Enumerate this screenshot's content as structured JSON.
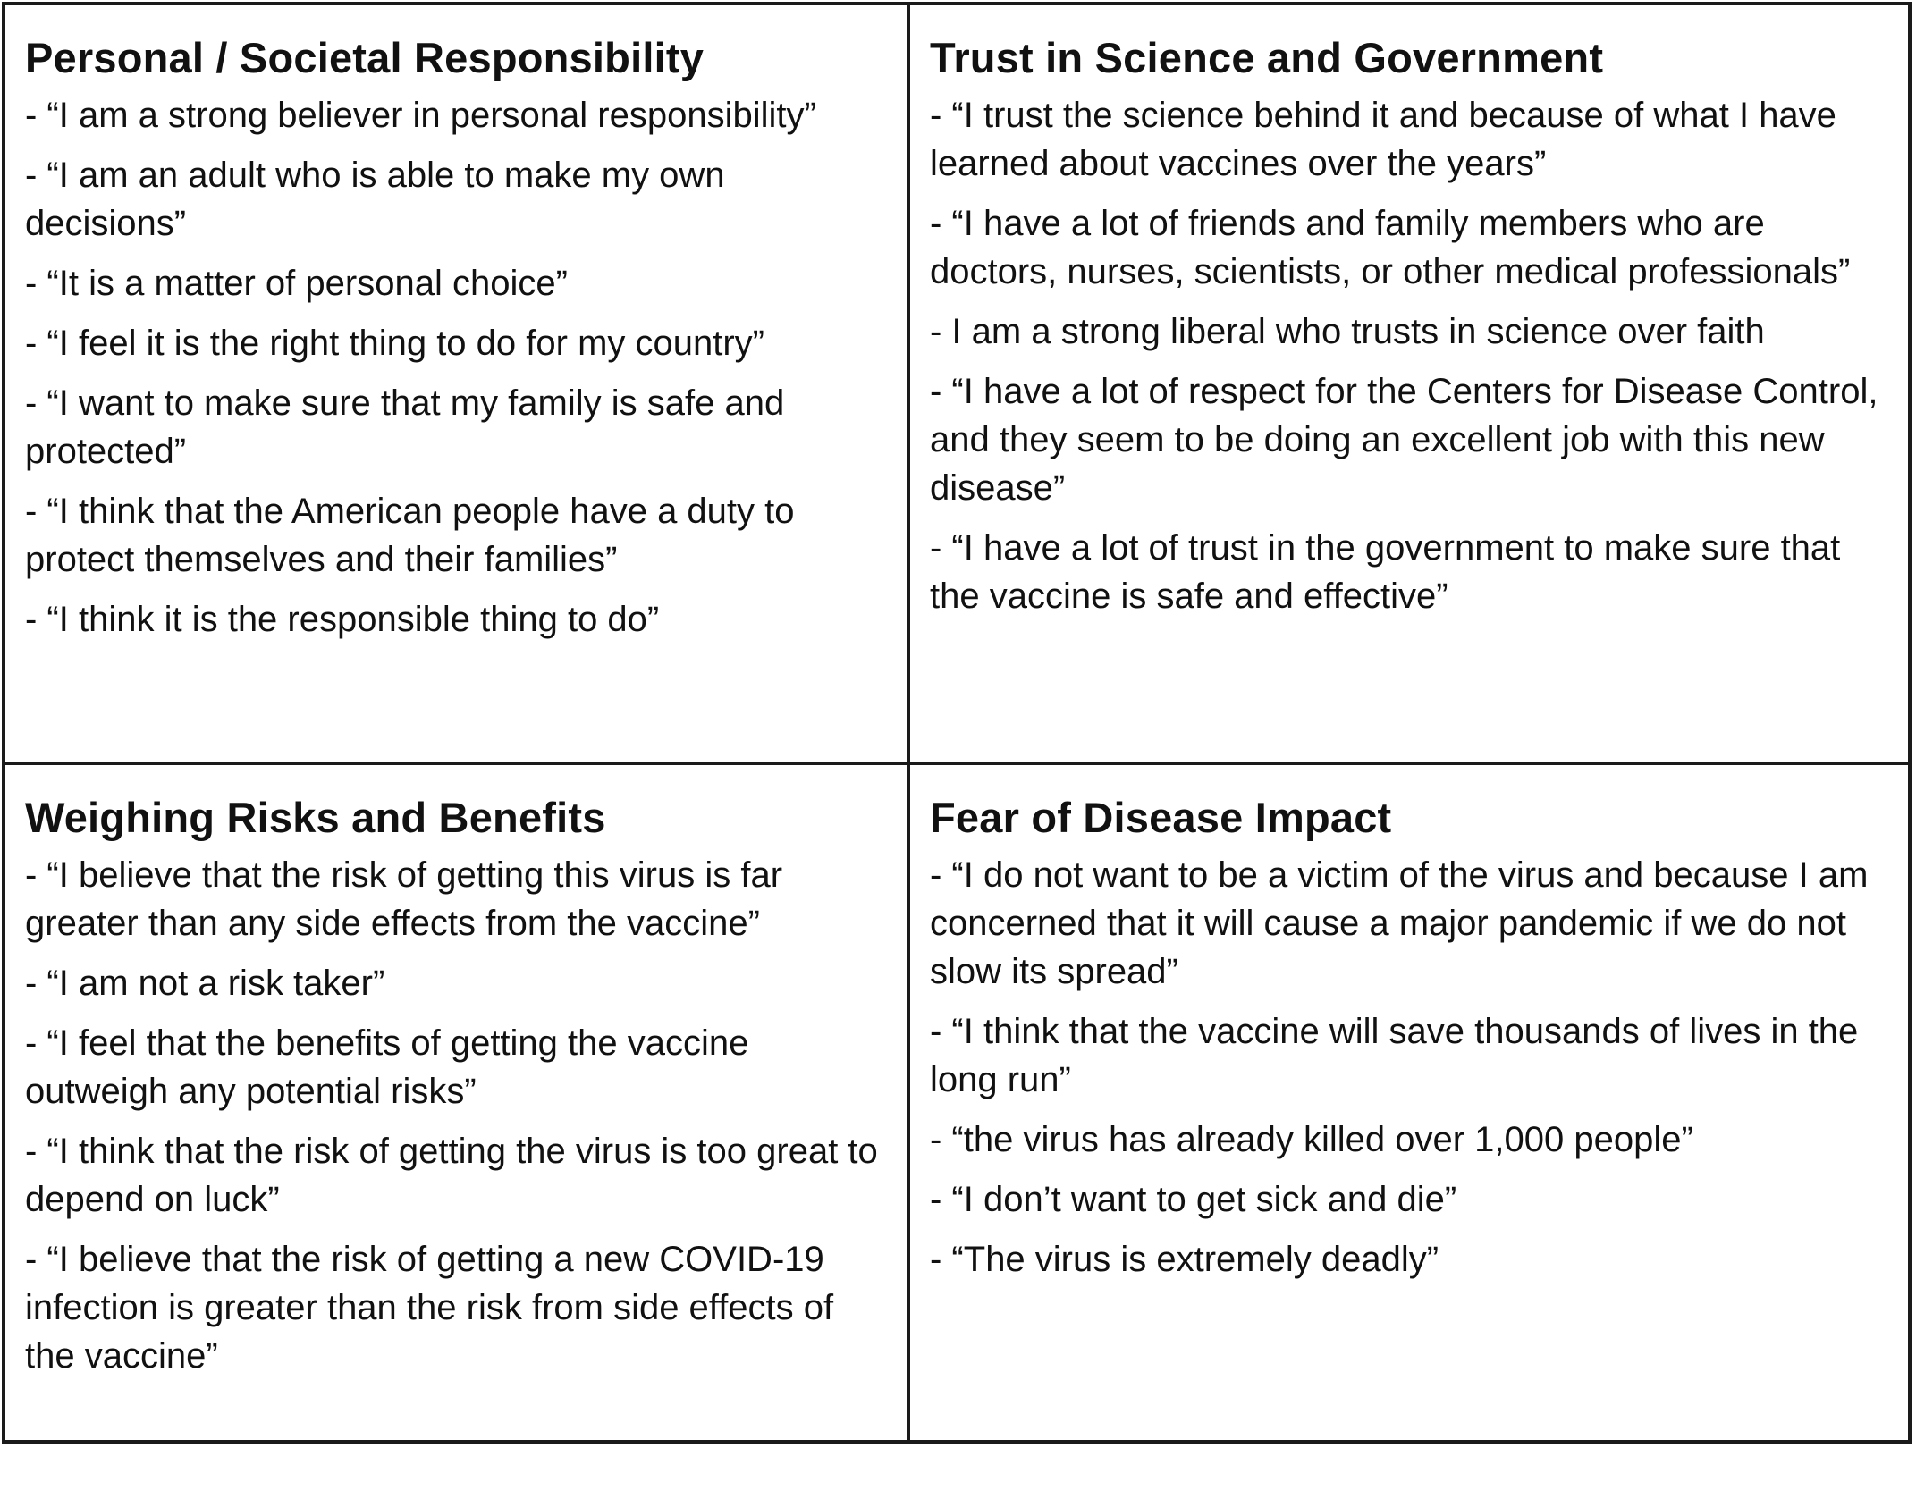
{
  "quadrants": [
    {
      "title": "Personal / Societal Responsibility",
      "items": [
        "- “I am a strong believer in personal responsibility”",
        "- “I am an adult who is able to make my own decisions”",
        "- “It is a matter of personal choice”",
        "- “I feel it is the right thing to do for my country”",
        "- “I want to make sure that my family is safe and protected”",
        "- “I think that the American people have a duty to protect themselves and their families”",
        "- “I think it is the responsible thing to do”"
      ]
    },
    {
      "title": "Trust in Science and Government",
      "items": [
        "-  “I trust the science behind it and because of what I have learned about vaccines over the years”",
        "- “I have a lot of friends and family members who are doctors, nurses, scientists, or other medical professionals”",
        "-  I am a strong liberal who trusts in science over faith",
        "-  “I have a lot of respect for the Centers for Disease Control, and they seem to be doing an excellent job with this new disease”",
        "-  “I have a lot of trust in the government to make sure that the vaccine is safe and effective”"
      ]
    },
    {
      "title": "Weighing Risks and Benefits",
      "items": [
        "- “I believe that the risk of getting this virus is far greater than any side effects from the vaccine”",
        "- “I am not a risk taker”",
        "- “I feel that the benefits of getting the vaccine outweigh any potential risks”",
        "- “I think that the risk of getting the virus is too great to depend on luck”",
        "- “I believe that the risk of getting a new COVID-19 infection is greater than the risk from side effects of the vaccine”"
      ]
    },
    {
      "title": "Fear of Disease Impact",
      "items": [
        "- “I do not want to be a victim of the virus and because I am concerned that it will cause a major pandemic if we do not slow its spread”",
        "-  “I think that the vaccine will save thousands of lives in the long run”",
        "- “the virus has already killed over 1,000 people”",
        "-  “I don’t want to get sick and die”",
        "- “The virus is extremely deadly”"
      ]
    }
  ]
}
